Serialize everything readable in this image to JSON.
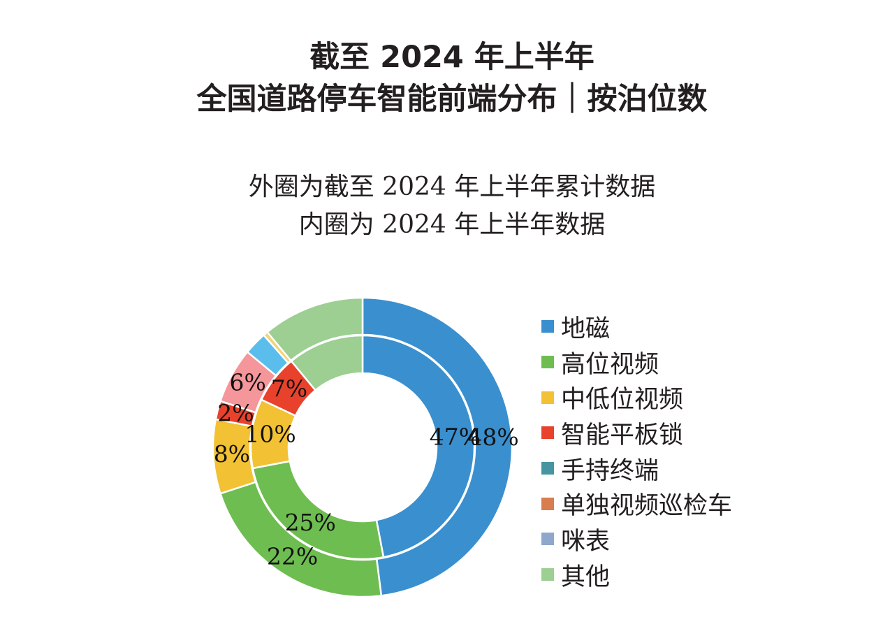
{
  "title": {
    "line1": "截至 2024 年上半年",
    "line2": "全国道路停车智能前端分布｜按泊位数"
  },
  "subtitle": {
    "line1": "外圈为截至 2024 年上半年累计数据",
    "line2": "内圈为 2024 年上半年数据"
  },
  "chart_data": {
    "type": "pie",
    "variant": "nested-donut",
    "categories": [
      "地磁",
      "高位视频",
      "中低位视频",
      "智能平板锁",
      "手持终端",
      "单独视频巡检车",
      "咪表",
      "其他"
    ],
    "series": [
      {
        "ring": "outer",
        "values": [
          48,
          22,
          8,
          2,
          6,
          2.5,
          0.5,
          11
        ],
        "labels": [
          "48%",
          "22%",
          "8%",
          "2%",
          "6%",
          "",
          "",
          ""
        ]
      },
      {
        "ring": "inner",
        "values": [
          47,
          25,
          10,
          7,
          0,
          0,
          0,
          11
        ],
        "labels": [
          "47%",
          "25%",
          "10%",
          "7%",
          "",
          "",
          "",
          ""
        ]
      }
    ],
    "outer_slice_colors": [
      "#3a8fcf",
      "#6ebd50",
      "#f2c134",
      "#e8412c",
      "#f4969a",
      "#5bbdec",
      "#f2d27a",
      "#9ccf91"
    ],
    "inner_slice_colors": [
      "#3a8fcf",
      "#6ebd50",
      "#f2c134",
      "#e8412c",
      "#f4969a",
      "#5bbdec",
      "#f2d27a",
      "#9ccf91"
    ],
    "legend": [
      {
        "label": "地磁",
        "color": "#3a8fcf"
      },
      {
        "label": "高位视频",
        "color": "#6ebd50"
      },
      {
        "label": "中低位视频",
        "color": "#f2c134"
      },
      {
        "label": "智能平板锁",
        "color": "#e8412c"
      },
      {
        "label": "手持终端",
        "color": "#4795a0"
      },
      {
        "label": "单独视频巡检车",
        "color": "#d97d4e"
      },
      {
        "label": "咪表",
        "color": "#8ea7cb"
      },
      {
        "label": "其他",
        "color": "#9ccf91"
      }
    ],
    "legend_position": "right"
  }
}
